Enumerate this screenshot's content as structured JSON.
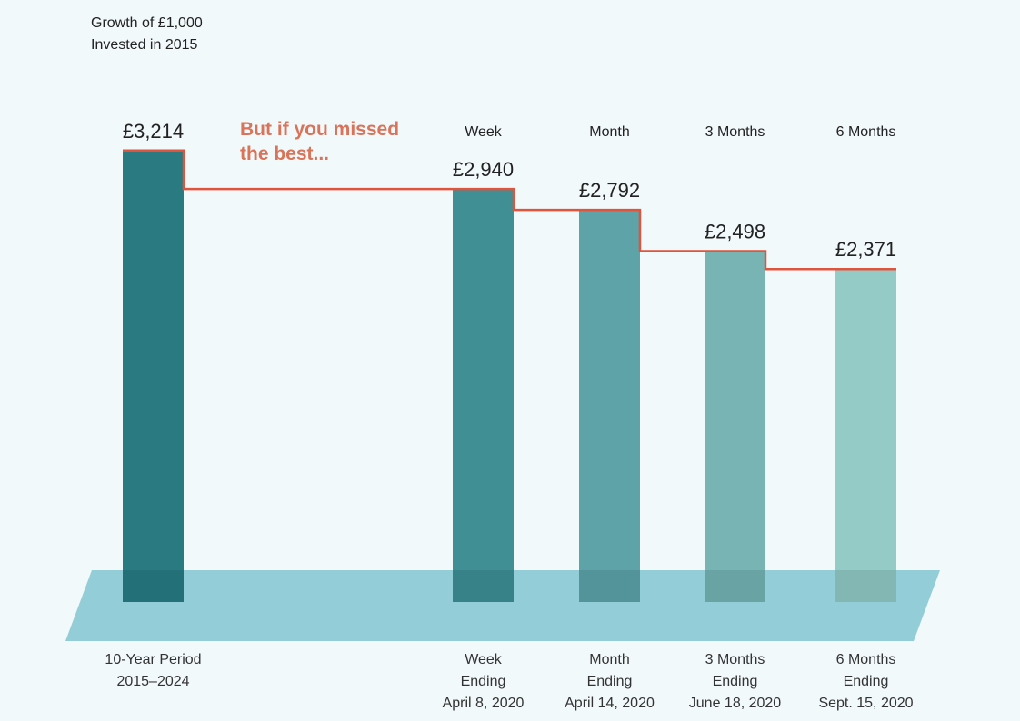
{
  "chart_data": {
    "type": "bar",
    "title": [
      "Growth of £1,000",
      "Invested in 2015"
    ],
    "annotation": [
      "But if you missed",
      "the best..."
    ],
    "categories": [
      "10-Year Period",
      "Week",
      "Month",
      "3 Months",
      "6 Months"
    ],
    "headers": [
      "",
      "Week",
      "Month",
      "3 Months",
      "6 Months"
    ],
    "value_labels": [
      "£3,214",
      "£2,940",
      "£2,792",
      "£2,498",
      "£2,371"
    ],
    "values": [
      3214,
      2940,
      2792,
      2498,
      2371
    ],
    "xlabels": [
      [
        "10-Year Period",
        "2015–2024"
      ],
      [
        "Week",
        "Ending",
        "April 8, 2020"
      ],
      [
        "Month",
        "Ending",
        "April 14, 2020"
      ],
      [
        "3 Months",
        "Ending",
        "June 18, 2020"
      ],
      [
        "6 Months",
        "Ending",
        "Sept. 15, 2020"
      ]
    ],
    "ylim": [
      0,
      3300
    ],
    "colors": [
      "#2a7a82",
      "#3f8f94",
      "#5ea3a8",
      "#78b4b4",
      "#95cbc6"
    ],
    "line_color": "#e0533d",
    "annotation_color": "#d9735a",
    "floor_color": "#93cdd8"
  }
}
